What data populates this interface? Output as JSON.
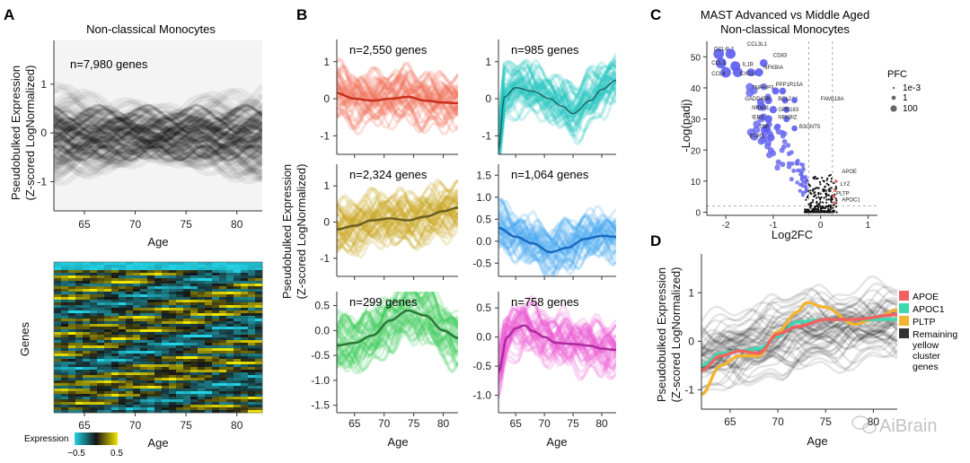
{
  "figure": {
    "watermark": "AiBrain",
    "panels": {
      "A": {
        "letter": "A",
        "title": "Non-classical Monocytes",
        "n_label": "n=7,980 genes",
        "ylabel_line1": "Pseudobulked Expression",
        "ylabel_line2": "(Z-scored LogNormalized)",
        "xlabel": "Age",
        "x_ticks": [
          "65",
          "70",
          "75",
          "80"
        ],
        "y_ticks": [
          "1",
          "0",
          "-1"
        ],
        "heatmap": {
          "ylabel": "Genes",
          "xlabel": "Age",
          "x_ticks": [
            "65",
            "70",
            "75",
            "80"
          ],
          "legend_title": "Expression",
          "legend_ticks": [
            "−0.5",
            "0.5"
          ],
          "low_color": "#22d3e6",
          "mid_color": "#141414",
          "high_color": "#f2e600"
        }
      },
      "B": {
        "letter": "B",
        "ylabel_line1": "Pseudobulked Expression",
        "ylabel_line2": "(Z-scored LogNormalized)",
        "xlabel": "Age",
        "x_ticks": [
          "65",
          "70",
          "75",
          "80"
        ],
        "clusters": [
          {
            "n_label": "n=2,550 genes",
            "color": "#f0705a",
            "line": "#c8321f",
            "y_ticks": [
              "1",
              "0",
              "-1"
            ]
          },
          {
            "n_label": "n=985 genes",
            "color": "#21c3c0",
            "line": "#1f5c5c",
            "y_ticks": [
              "1",
              "0",
              "-1"
            ]
          },
          {
            "n_label": "n=2,324 genes",
            "color": "#c8a61a",
            "line": "#6e6020",
            "y_ticks": [
              "1",
              "0",
              "-1"
            ]
          },
          {
            "n_label": "n=1,064 genes",
            "color": "#4aa8f0",
            "line": "#1a6cc0",
            "y_ticks": [
              "1.5",
              "1.0",
              "0.5",
              "0.0",
              "-0.5"
            ]
          },
          {
            "n_label": "n=299 genes",
            "color": "#3ecb5a",
            "line": "#2a7a38",
            "y_ticks": [
              "0.5",
              "0.0",
              "-0.5",
              "-1.0",
              "-1.5"
            ]
          },
          {
            "n_label": "n=758 genes",
            "color": "#ef5fd8",
            "line": "#b02aa0",
            "y_ticks": [
              "0.5",
              "0.0",
              "-0.5",
              "-1.0"
            ]
          }
        ]
      },
      "C": {
        "letter": "C",
        "title_line1": "MAST Advanced vs Middle Aged",
        "title_line2": "Non-classical Monocytes",
        "xlabel": "Log2FC",
        "ylabel": "-Log(padj)",
        "x_ticks": [
          "-2",
          "-1",
          "0",
          "1"
        ],
        "y_ticks": [
          "50",
          "40",
          "30",
          "20",
          "10",
          "0"
        ],
        "legend_title": "PFC",
        "legend_items": [
          "1e-3",
          "1",
          "100"
        ],
        "gene_labels": [
          "CCL4L2",
          "CCL3L1",
          "CCL3",
          "IL1B",
          "CD83",
          "CCL4",
          "CXCL8",
          "NFKBIA",
          "TNFAIP3",
          "PPP1R15A",
          "GADD45B",
          "BCL2A1",
          "FAM118A",
          "NR4A1",
          "GPR183",
          "IER3",
          "NFKBIZ",
          "TNF",
          "B3GNT5",
          "EGR1",
          "APOE",
          "LYZ",
          "PLTP",
          "APOC1"
        ]
      },
      "D": {
        "letter": "D",
        "ylabel_line1": "Pseudobulked Expression",
        "ylabel_line2": "(Z-scored LogNormalized)",
        "xlabel": "Age",
        "x_ticks": [
          "65",
          "70",
          "75",
          "80"
        ],
        "y_ticks": [
          "1",
          "0",
          "-1"
        ],
        "legend": [
          {
            "label": "APOE",
            "color": "#f26060"
          },
          {
            "label": "APOC1",
            "color": "#3ed8b0"
          },
          {
            "label": "PLTP",
            "color": "#f2b430"
          },
          {
            "label": "Remaining\nyellow\ncluster\ngenes",
            "color": "#333333"
          }
        ]
      }
    }
  },
  "chart_data": [
    {
      "type": "line",
      "panel": "A",
      "title": "Non-classical Monocytes",
      "xlabel": "Age",
      "ylabel": "Pseudobulked Expression (Z-scored LogNormalized)",
      "xlim": [
        62,
        82.5
      ],
      "ylim": [
        -1.6,
        1.9
      ],
      "annotation": "n=7,980 genes",
      "series": [
        {
          "x": [
            62,
            82.5
          ],
          "values": [
            0,
            0
          ]
        }
      ]
    },
    {
      "type": "line",
      "panel": "B",
      "xlabel": "Age",
      "ylabel": "Pseudobulked Expression (Z-scored LogNormalized)",
      "xlim": [
        62,
        82.5
      ],
      "subplots": [
        {
          "annotation": "n=2,550 genes",
          "ylim": [
            -1.5,
            1.6
          ],
          "x": [
            62,
            65,
            68,
            71,
            74,
            77,
            80,
            82.5
          ],
          "values": [
            0.15,
            0.0,
            -0.05,
            0.0,
            0.05,
            -0.05,
            -0.1,
            -0.12
          ]
        },
        {
          "annotation": "n=985 genes",
          "ylim": [
            -1.5,
            1.6
          ],
          "x": [
            62,
            63,
            65,
            68,
            71,
            73,
            75,
            78,
            80,
            82.5
          ],
          "values": [
            -1.4,
            0.05,
            0.3,
            0.2,
            0.0,
            -0.2,
            -0.4,
            -0.05,
            0.25,
            0.5
          ]
        },
        {
          "annotation": "n=2,324 genes",
          "ylim": [
            -1.5,
            1.6
          ],
          "x": [
            62,
            65,
            68,
            71,
            74,
            77,
            80,
            82.5
          ],
          "values": [
            -0.2,
            -0.1,
            0.05,
            0.1,
            0.05,
            0.15,
            0.3,
            0.4
          ]
        },
        {
          "annotation": "n=1,064 genes",
          "ylim": [
            -0.8,
            1.75
          ],
          "x": [
            62,
            65,
            68,
            71,
            74,
            77,
            80,
            82.5
          ],
          "values": [
            0.3,
            0.1,
            -0.05,
            -0.25,
            -0.15,
            0.05,
            0.12,
            0.1
          ]
        },
        {
          "annotation": "n=299 genes",
          "ylim": [
            -1.65,
            0.78
          ],
          "x": [
            62,
            65,
            68,
            71,
            74,
            77,
            80,
            82.5
          ],
          "values": [
            -0.3,
            -0.25,
            -0.1,
            0.2,
            0.4,
            0.3,
            0.0,
            -0.15
          ]
        },
        {
          "annotation": "n=758 genes",
          "ylim": [
            -1.3,
            0.78
          ],
          "x": [
            62,
            63.5,
            65,
            66.5,
            68,
            70,
            72,
            75,
            78,
            80,
            82.5
          ],
          "values": [
            -0.6,
            0.0,
            0.15,
            0.2,
            0.1,
            0.0,
            -0.1,
            -0.12,
            -0.15,
            -0.2,
            -0.22
          ]
        }
      ]
    },
    {
      "type": "scatter",
      "panel": "C",
      "title": "MAST Advanced vs Middle Aged Non-classical Monocytes",
      "xlabel": "Log2FC",
      "ylabel": "-Log(padj)",
      "xlim": [
        -2.4,
        1.2
      ],
      "ylim": [
        -1,
        55
      ],
      "thresholds": {
        "x": [
          -0.25,
          0.25
        ],
        "y": 2
      },
      "points": [
        {
          "label": "CCL4L2",
          "x": -2.15,
          "y": 51
        },
        {
          "label": "CCL3L1",
          "x": -1.9,
          "y": 51
        },
        {
          "label": "CCL3",
          "x": -2.1,
          "y": 48
        },
        {
          "label": "IL1B",
          "x": -1.8,
          "y": 47
        },
        {
          "label": "CD83",
          "x": -1.2,
          "y": 48
        },
        {
          "label": "CCL4",
          "x": -2.0,
          "y": 45
        },
        {
          "label": "CXCL8",
          "x": -1.75,
          "y": 45
        },
        {
          "label": "NFKBIA",
          "x": -1.3,
          "y": 45
        },
        {
          "label": "TNFAIP3",
          "x": -0.95,
          "y": 39
        },
        {
          "label": "PPP1R15A",
          "x": -0.8,
          "y": 39
        },
        {
          "label": "GADD45B",
          "x": -1.1,
          "y": 36
        },
        {
          "label": "BCL2A1",
          "x": -0.75,
          "y": 36
        },
        {
          "label": "FAM118A",
          "x": -0.55,
          "y": 36
        },
        {
          "label": "NR4A1",
          "x": -1.0,
          "y": 33
        },
        {
          "label": "GPR183",
          "x": -0.72,
          "y": 33
        },
        {
          "label": "IER3",
          "x": -1.1,
          "y": 30
        },
        {
          "label": "NFKBIZ",
          "x": -0.72,
          "y": 30
        },
        {
          "label": "TNF",
          "x": -1.15,
          "y": 27
        },
        {
          "label": "B3GNT5",
          "x": -0.55,
          "y": 27
        },
        {
          "label": "EGR1",
          "x": -1.05,
          "y": 24
        },
        {
          "label": "APOE",
          "x": 0.32,
          "y": 10
        },
        {
          "label": "LYZ",
          "x": 0.3,
          "y": 7
        },
        {
          "label": "PLTP",
          "x": 0.28,
          "y": 5
        },
        {
          "label": "APOC1",
          "x": 0.3,
          "y": 3
        }
      ]
    },
    {
      "type": "line",
      "panel": "D",
      "xlabel": "Age",
      "ylabel": "Pseudobulked Expression (Z-scored LogNormalized)",
      "xlim": [
        62,
        82.5
      ],
      "ylim": [
        -1.4,
        1.8
      ],
      "series": [
        {
          "name": "APOE",
          "x": [
            62,
            64,
            66,
            68,
            70,
            72,
            75,
            78,
            82.5
          ],
          "values": [
            -0.6,
            -0.3,
            -0.2,
            -0.25,
            0.15,
            0.3,
            0.45,
            0.45,
            0.55
          ]
        },
        {
          "name": "APOC1",
          "x": [
            62,
            64,
            66,
            68,
            70,
            72,
            75,
            78,
            82.5
          ],
          "values": [
            -0.5,
            -0.25,
            -0.2,
            -0.15,
            0.1,
            0.4,
            0.45,
            0.45,
            0.45
          ]
        },
        {
          "name": "PLTP",
          "x": [
            62,
            64,
            66,
            68,
            70,
            72,
            73,
            75,
            78,
            80,
            82.5
          ],
          "values": [
            -1.1,
            -0.5,
            -0.3,
            -0.3,
            0.2,
            0.6,
            0.8,
            0.7,
            0.35,
            0.45,
            0.65
          ]
        }
      ]
    }
  ]
}
